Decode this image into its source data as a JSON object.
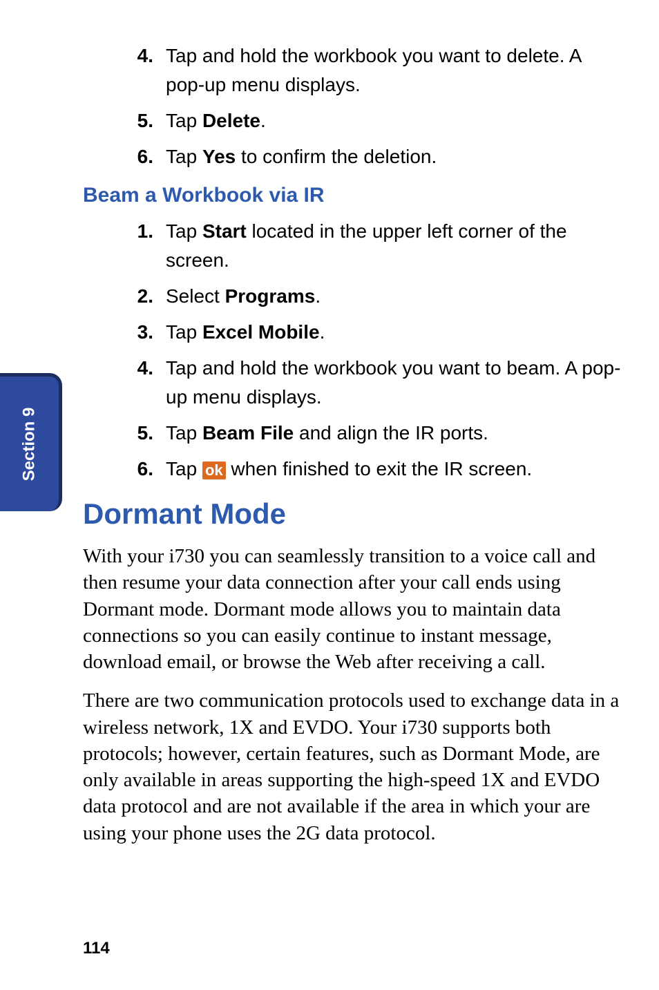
{
  "sideTab": {
    "label": "Section 9"
  },
  "firstList": [
    {
      "num": "4.",
      "parts": [
        {
          "t": "Tap and hold the workbook you want to delete. A pop-up menu displays.",
          "b": false
        }
      ]
    },
    {
      "num": "5.",
      "parts": [
        {
          "t": "Tap ",
          "b": false
        },
        {
          "t": "Delete",
          "b": true
        },
        {
          "t": ".",
          "b": false
        }
      ]
    },
    {
      "num": "6.",
      "parts": [
        {
          "t": "Tap ",
          "b": false
        },
        {
          "t": "Yes",
          "b": true
        },
        {
          "t": " to confirm the deletion.",
          "b": false
        }
      ]
    }
  ],
  "subheading": "Beam a Workbook via IR",
  "secondList": [
    {
      "num": "1.",
      "parts": [
        {
          "t": "Tap ",
          "b": false
        },
        {
          "t": "Start",
          "b": true
        },
        {
          "t": " located in the upper left corner of the screen.",
          "b": false
        }
      ]
    },
    {
      "num": "2.",
      "parts": [
        {
          "t": "Select ",
          "b": false
        },
        {
          "t": "Programs",
          "b": true
        },
        {
          "t": ".",
          "b": false
        }
      ]
    },
    {
      "num": "3.",
      "parts": [
        {
          "t": "Tap ",
          "b": false
        },
        {
          "t": "Excel Mobile",
          "b": true
        },
        {
          "t": ".",
          "b": false
        }
      ]
    },
    {
      "num": "4.",
      "parts": [
        {
          "t": "Tap and hold the workbook you want to beam. A pop-up menu displays.",
          "b": false
        }
      ]
    },
    {
      "num": "5.",
      "parts": [
        {
          "t": "Tap ",
          "b": false
        },
        {
          "t": "Beam File",
          "b": true
        },
        {
          "t": " and align the IR ports.",
          "b": false
        }
      ]
    },
    {
      "num": "6.",
      "parts": [
        {
          "t": "Tap ",
          "b": false
        },
        {
          "t": "ok",
          "badge": true
        },
        {
          "t": " when finished to exit the IR screen.",
          "b": false
        }
      ]
    }
  ],
  "heading": "Dormant Mode",
  "paragraphs": [
    "With your i730 you can seamlessly transition to a voice call and then resume your data connection after your call ends using Dormant mode. Dormant mode allows you to maintain data connections so you can easily continue to instant message, download email, or browse the Web after receiving a call.",
    "There are two communication protocols used to exchange data in a wireless network, 1X and EVDO. Your i730 supports both protocols; however, certain features, such as Dormant Mode, are only available in areas supporting the high-speed 1X and EVDO data protocol and are not available if the area in which your are using your phone uses the 2G data protocol."
  ],
  "pageNumber": "114",
  "colors": {
    "tabBg": "#2e4a9e",
    "tabBorder": "#1a2d5e",
    "headingColor": "#2e5aae",
    "badgeBg": "#dd6b1f"
  }
}
